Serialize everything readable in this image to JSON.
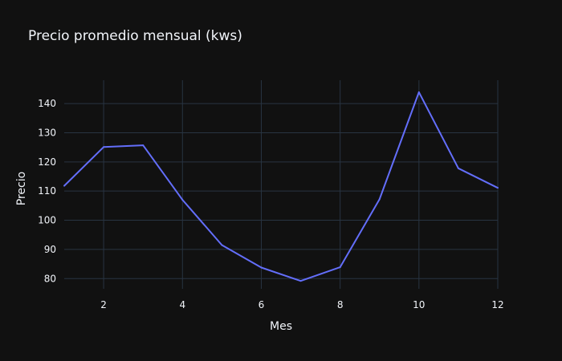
{
  "chart_data": {
    "type": "line",
    "title": "Precio promedio mensual (kws)",
    "xlabel": "Mes",
    "ylabel": "Precio",
    "x": [
      1,
      2,
      3,
      4,
      5,
      6,
      7,
      8,
      9,
      10,
      11,
      12
    ],
    "series": [
      {
        "values": [
          111.8,
          125.1,
          125.7,
          107.0,
          91.5,
          83.8,
          79.2,
          83.9,
          107.2,
          143.9,
          117.8,
          111.1
        ]
      }
    ],
    "xlim": [
      1,
      12
    ],
    "ylim": [
      76.5,
      148
    ],
    "xticks": [
      2,
      4,
      6,
      8,
      10,
      12
    ],
    "yticks": [
      80,
      90,
      100,
      110,
      120,
      130,
      140
    ],
    "grid": true,
    "legend": "none",
    "colors": {
      "background": "#111111",
      "grid": "#283442",
      "text": "#f2f5fa",
      "line": "#636efa"
    }
  }
}
